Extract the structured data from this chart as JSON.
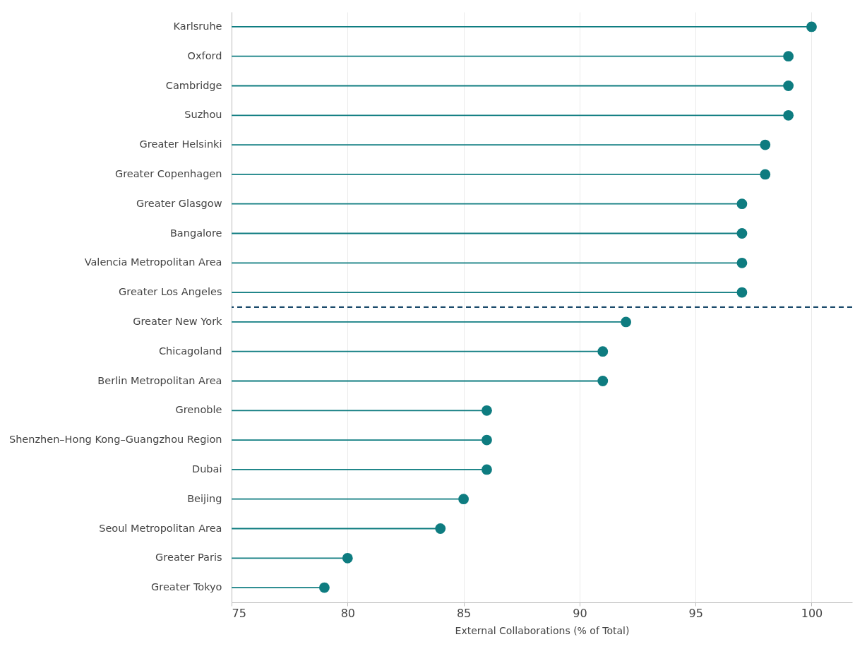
{
  "chart_data": {
    "type": "lollipop",
    "orientation": "horizontal",
    "xlabel": "External Collaborations (% of Total)",
    "categories": [
      "Karlsruhe",
      "Oxford",
      "Cambridge",
      "Suzhou",
      "Greater Helsinki",
      "Greater Copenhagen",
      "Greater Glasgow",
      "Bangalore",
      "Valencia Metropolitan Area",
      "Greater Los Angeles",
      "Greater New York",
      "Chicagoland",
      "Berlin Metropolitan Area",
      "Grenoble",
      "Shenzhen–Hong Kong–Guangzhou Region",
      "Dubai",
      "Beijing",
      "Seoul Metropolitan Area",
      "Greater Paris",
      "Greater Tokyo"
    ],
    "values": [
      100,
      99,
      99,
      99,
      98,
      98,
      97,
      97,
      97,
      97,
      92,
      91,
      91,
      86,
      86,
      86,
      85,
      84,
      80,
      79
    ],
    "color": "#0e7c80",
    "marker": "circle",
    "xlim": [
      75,
      101.75
    ],
    "xticks": [
      75,
      80,
      85,
      90,
      95,
      100
    ],
    "grid": "x",
    "ref_lines": [
      {
        "axis": "y",
        "value": "Greater Los Angeles",
        "color": "#1a4a6b",
        "line_style": "dashed"
      }
    ]
  }
}
